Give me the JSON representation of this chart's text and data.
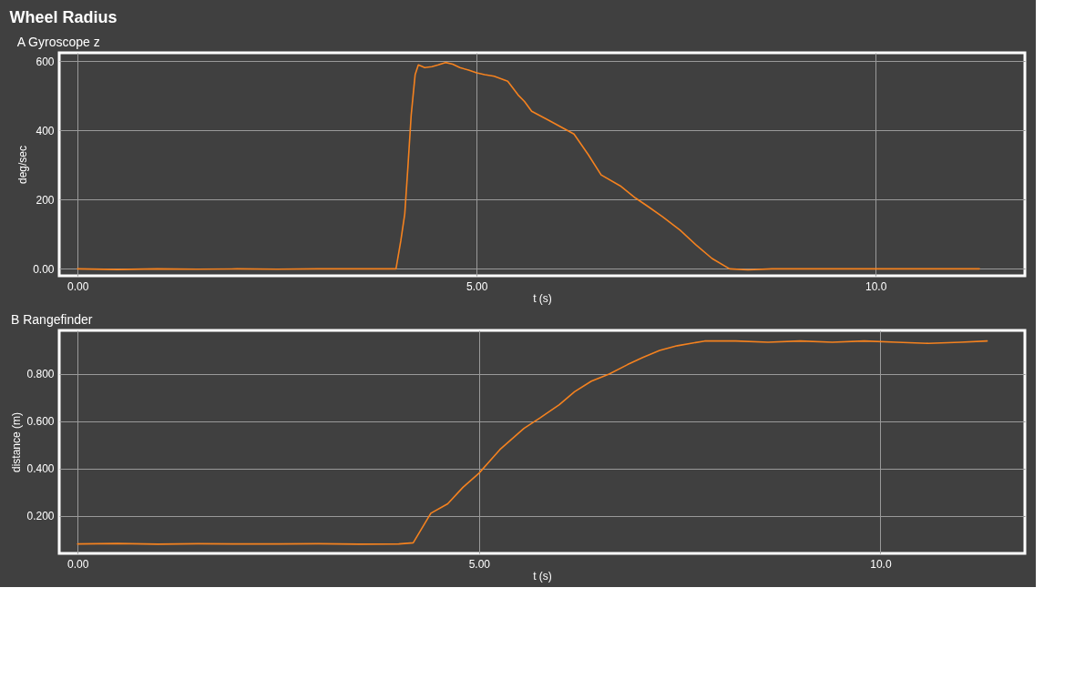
{
  "chart_data": [
    {
      "type": "line",
      "title": "Wheel Radius",
      "subtitle": "A Gyroscope z",
      "xlabel": "t (s)",
      "ylabel": "deg/sec",
      "grid": true,
      "xlim": [
        -0.23,
        11.87
      ],
      "ylim": [
        -20,
        625
      ],
      "xticks": [
        {
          "value": 0,
          "label": "0.00"
        },
        {
          "value": 5,
          "label": "5.00"
        },
        {
          "value": 10,
          "label": "10.0"
        }
      ],
      "yticks": [
        {
          "value": 0,
          "label": "0.00"
        },
        200,
        400,
        600
      ],
      "x": [
        0,
        0.5,
        1,
        1.5,
        2,
        2.5,
        3,
        3.5,
        3.99,
        4.05,
        4.1,
        4.14,
        4.18,
        4.23,
        4.27,
        4.35,
        4.44,
        4.52,
        4.61,
        4.7,
        4.79,
        4.9,
        5.0,
        5.1,
        5.22,
        5.39,
        5.52,
        5.6,
        5.69,
        5.9,
        6.22,
        6.4,
        6.56,
        6.8,
        6.99,
        7.15,
        7.33,
        7.55,
        7.75,
        7.95,
        8.17,
        8.4,
        8.7,
        9.5,
        10.5,
        11.3
      ],
      "series": [
        {
          "color": "#f5821f",
          "values": [
            0,
            -2,
            0,
            -1,
            0,
            -1,
            0,
            0,
            0,
            81,
            159,
            297,
            444,
            562,
            590,
            582,
            585,
            590,
            597,
            592,
            582,
            575,
            567,
            562,
            557,
            543,
            503,
            484,
            456,
            430,
            390,
            330,
            272,
            240,
            205,
            180,
            151,
            112,
            69,
            30,
            0,
            -3,
            0,
            0,
            0,
            0
          ]
        }
      ]
    },
    {
      "type": "line",
      "title": "B Rangefinder",
      "xlabel": "t (s)",
      "ylabel": "distance (m)",
      "grid": true,
      "xlim": [
        -0.23,
        11.8
      ],
      "ylim": [
        0.04,
        0.985
      ],
      "xticks": [
        {
          "value": 0,
          "label": "0.00"
        },
        {
          "value": 5,
          "label": "5.00"
        },
        {
          "value": 10,
          "label": "10.0"
        }
      ],
      "yticks": [
        {
          "value": 0.2,
          "label": "0.200"
        },
        {
          "value": 0.4,
          "label": "0.400"
        },
        {
          "value": 0.6,
          "label": "0.600"
        },
        {
          "value": 0.8,
          "label": "0.800"
        }
      ],
      "x": [
        0,
        0.5,
        1,
        1.5,
        2,
        2.5,
        3,
        3.5,
        4,
        4.18,
        4.4,
        4.61,
        4.8,
        5.0,
        5.26,
        5.56,
        5.76,
        6.0,
        6.19,
        6.4,
        6.62,
        6.85,
        7.04,
        7.25,
        7.47,
        7.81,
        8.2,
        8.6,
        9.0,
        9.4,
        9.8,
        10.2,
        10.6,
        11.0,
        11.33
      ],
      "series": [
        {
          "color": "#f5821f",
          "values": [
            0.08,
            0.082,
            0.079,
            0.081,
            0.08,
            0.08,
            0.081,
            0.079,
            0.08,
            0.085,
            0.21,
            0.25,
            0.32,
            0.38,
            0.48,
            0.57,
            0.614,
            0.67,
            0.725,
            0.77,
            0.8,
            0.84,
            0.87,
            0.9,
            0.92,
            0.94,
            0.94,
            0.935,
            0.94,
            0.935,
            0.94,
            0.935,
            0.93,
            0.935,
            0.94
          ]
        }
      ]
    }
  ]
}
